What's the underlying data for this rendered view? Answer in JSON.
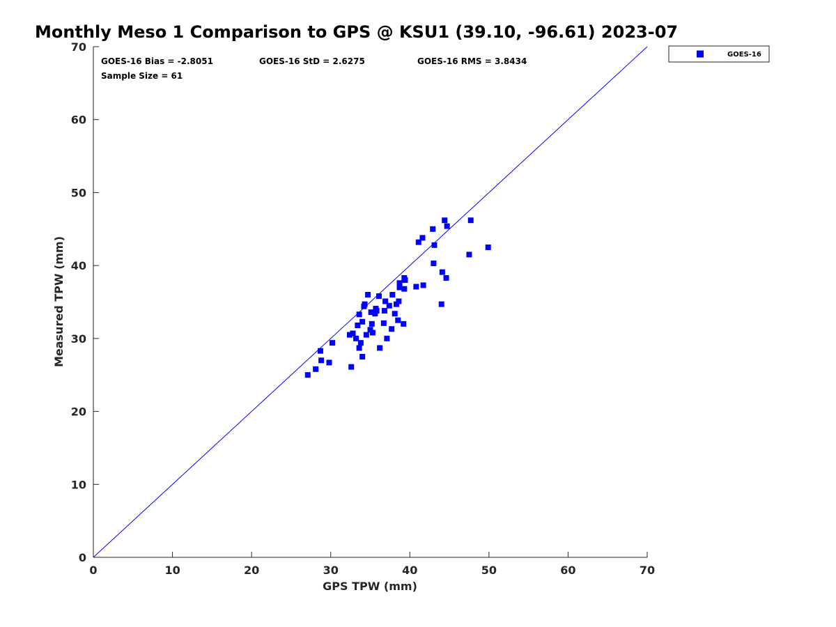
{
  "chart_data": {
    "type": "scatter",
    "title": "Monthly Meso 1 Comparison to GPS @ KSU1 (39.10, -96.61) 2023-07",
    "xlabel": "GPS TPW (mm)",
    "ylabel": "Measured TPW (mm)",
    "xlim": [
      0,
      70
    ],
    "ylim": [
      0,
      70
    ],
    "xticks": [
      0,
      10,
      20,
      30,
      40,
      50,
      60,
      70
    ],
    "yticks": [
      0,
      10,
      20,
      30,
      40,
      50,
      60,
      70
    ],
    "grid": false,
    "legend_position": "outside top-right",
    "reference_line": {
      "x": [
        0,
        70
      ],
      "y": [
        0,
        70
      ],
      "color": "#0000ff"
    },
    "annotations": [
      "GOES-16 Bias = -2.8051",
      "GOES-16 StD = 2.6275",
      "GOES-16 RMS = 3.8434",
      "Sample Size = 61"
    ],
    "series": [
      {
        "name": "GOES-16",
        "color": "#0000ff",
        "marker": "square",
        "x": [
          27.1,
          28.1,
          28.7,
          28.8,
          29.8,
          30.2,
          32.4,
          32.6,
          32.8,
          33.2,
          33.4,
          33.6,
          33.6,
          33.8,
          34.0,
          34.0,
          34.2,
          34.3,
          34.5,
          34.7,
          35.0,
          35.1,
          35.2,
          35.3,
          35.6,
          35.7,
          35.8,
          36.1,
          36.2,
          36.7,
          36.8,
          36.9,
          37.1,
          37.4,
          37.7,
          37.8,
          38.1,
          38.3,
          38.5,
          38.6,
          38.7,
          38.7,
          39.2,
          39.3,
          39.3,
          39.4,
          40.8,
          41.1,
          41.6,
          41.7,
          42.9,
          43.0,
          43.1,
          44.0,
          44.1,
          44.4,
          44.6,
          44.7,
          47.5,
          47.7,
          49.9
        ],
        "y": [
          25.0,
          25.8,
          28.3,
          27.0,
          26.7,
          29.4,
          30.5,
          26.1,
          30.7,
          30.0,
          31.8,
          28.7,
          33.3,
          29.4,
          27.5,
          32.3,
          34.4,
          34.7,
          30.5,
          36.0,
          31.2,
          33.6,
          32.0,
          30.8,
          33.4,
          34.1,
          33.8,
          35.8,
          28.7,
          32.1,
          33.8,
          35.1,
          30.0,
          34.5,
          31.3,
          36.0,
          33.4,
          34.7,
          32.5,
          35.1,
          37.0,
          37.6,
          32.0,
          38.3,
          36.8,
          38.0,
          37.1,
          43.2,
          43.8,
          37.3,
          45.0,
          40.3,
          42.8,
          34.7,
          39.1,
          46.2,
          38.3,
          45.4,
          41.5,
          46.2,
          42.5
        ]
      }
    ]
  }
}
